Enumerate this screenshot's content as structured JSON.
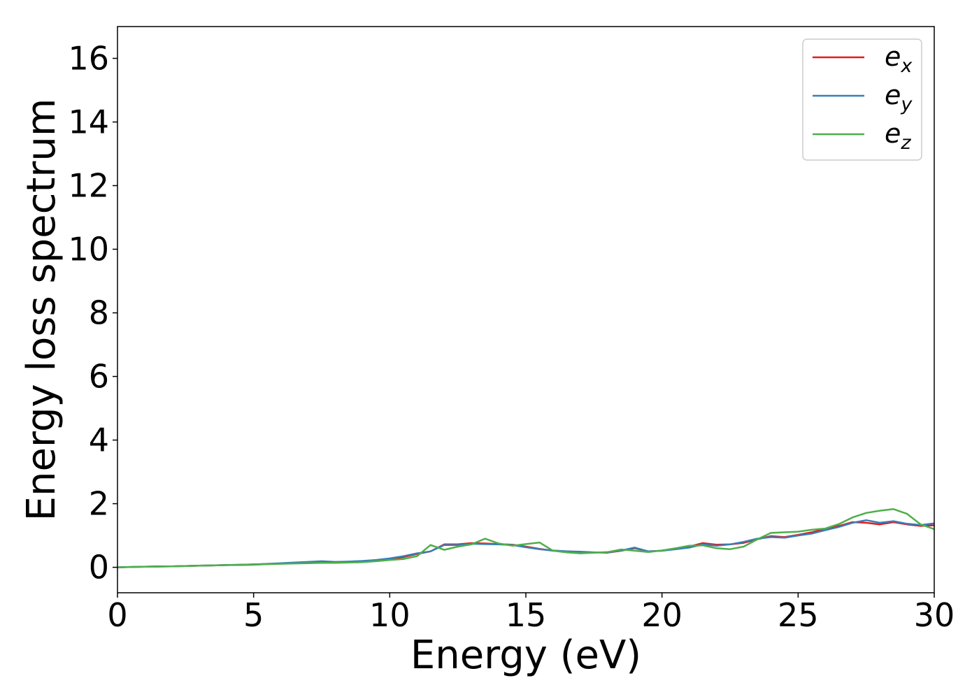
{
  "chart_data": {
    "type": "line",
    "title": "",
    "xlabel": "Energy (eV)",
    "ylabel": "Energy loss spectrum",
    "xlim": [
      0,
      30
    ],
    "ylim": [
      -0.8,
      17
    ],
    "xticks": [
      0,
      5,
      10,
      15,
      20,
      25,
      30
    ],
    "yticks": [
      0,
      2,
      4,
      6,
      8,
      10,
      12,
      14,
      16
    ],
    "grid": false,
    "legend_position": "top-right",
    "x": [
      0,
      0.5,
      1,
      1.5,
      2,
      2.5,
      3,
      3.5,
      4,
      4.5,
      5,
      5.5,
      6,
      6.5,
      7,
      7.5,
      8,
      8.5,
      9,
      9.5,
      10,
      10.5,
      11,
      11.5,
      12,
      12.5,
      13,
      13.5,
      14,
      14.5,
      15,
      15.5,
      16,
      16.5,
      17,
      17.5,
      18,
      18.5,
      19,
      19.5,
      20,
      20.5,
      21,
      21.5,
      22,
      22.5,
      23,
      23.5,
      24,
      24.5,
      25,
      25.5,
      26,
      26.5,
      27,
      27.5,
      28,
      28.5,
      29,
      29.5,
      30
    ],
    "series": [
      {
        "name": "e",
        "subscript": "x",
        "color": "#e41a1c",
        "values": [
          0.0,
          0.01,
          0.02,
          0.03,
          0.03,
          0.04,
          0.05,
          0.06,
          0.07,
          0.08,
          0.09,
          0.1,
          0.12,
          0.14,
          0.15,
          0.17,
          0.16,
          0.17,
          0.19,
          0.21,
          0.25,
          0.32,
          0.42,
          0.5,
          0.72,
          0.72,
          0.76,
          0.75,
          0.73,
          0.71,
          0.65,
          0.58,
          0.52,
          0.5,
          0.48,
          0.47,
          0.46,
          0.52,
          0.6,
          0.5,
          0.52,
          0.58,
          0.65,
          0.76,
          0.71,
          0.72,
          0.77,
          0.88,
          0.98,
          0.95,
          1.02,
          1.1,
          1.2,
          1.3,
          1.42,
          1.4,
          1.35,
          1.42,
          1.35,
          1.3,
          1.32
        ]
      },
      {
        "name": "e",
        "subscript": "y",
        "color": "#377eb8",
        "values": [
          0.0,
          0.01,
          0.02,
          0.03,
          0.03,
          0.04,
          0.05,
          0.06,
          0.07,
          0.08,
          0.09,
          0.11,
          0.13,
          0.15,
          0.17,
          0.19,
          0.17,
          0.18,
          0.2,
          0.23,
          0.28,
          0.35,
          0.44,
          0.5,
          0.7,
          0.7,
          0.74,
          0.73,
          0.72,
          0.7,
          0.63,
          0.57,
          0.53,
          0.5,
          0.49,
          0.47,
          0.47,
          0.53,
          0.62,
          0.5,
          0.52,
          0.57,
          0.62,
          0.72,
          0.68,
          0.72,
          0.8,
          0.9,
          0.95,
          0.93,
          1.0,
          1.06,
          1.17,
          1.27,
          1.4,
          1.48,
          1.4,
          1.45,
          1.37,
          1.33,
          1.38
        ]
      },
      {
        "name": "e",
        "subscript": "z",
        "color": "#4daf4a",
        "values": [
          0.0,
          0.01,
          0.02,
          0.02,
          0.03,
          0.04,
          0.05,
          0.06,
          0.07,
          0.07,
          0.08,
          0.1,
          0.11,
          0.12,
          0.13,
          0.14,
          0.14,
          0.15,
          0.16,
          0.19,
          0.23,
          0.26,
          0.35,
          0.7,
          0.55,
          0.65,
          0.72,
          0.9,
          0.75,
          0.68,
          0.73,
          0.78,
          0.52,
          0.47,
          0.44,
          0.46,
          0.48,
          0.56,
          0.52,
          0.48,
          0.53,
          0.6,
          0.68,
          0.69,
          0.6,
          0.57,
          0.65,
          0.88,
          1.08,
          1.1,
          1.12,
          1.18,
          1.22,
          1.36,
          1.57,
          1.71,
          1.78,
          1.83,
          1.68,
          1.35,
          1.2
        ]
      }
    ]
  }
}
